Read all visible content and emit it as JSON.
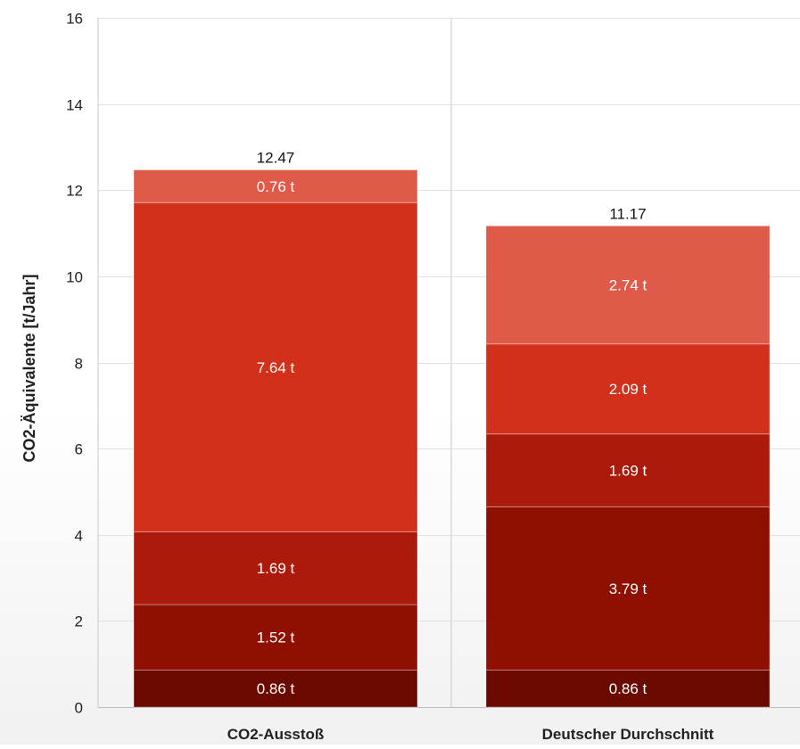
{
  "chart_data": {
    "type": "bar",
    "stacked": true,
    "title": "",
    "xlabel": "",
    "ylabel": "CO2-Äquivalente [t/Jahr]",
    "ylim": [
      0,
      16
    ],
    "yticks": [
      0,
      2,
      4,
      6,
      8,
      10,
      12,
      14,
      16
    ],
    "grid": true,
    "legend": "none",
    "categories": [
      "CO2-Ausstoß",
      "Deutscher Durchschnitt"
    ],
    "totals": [
      12.47,
      11.17
    ],
    "total_labels": [
      "12.47",
      "11.17"
    ],
    "series": [
      {
        "color": "#6b0a00",
        "values": [
          0.86,
          0.86
        ],
        "labels": [
          "0.86 t",
          "0.86 t"
        ]
      },
      {
        "color": "#8f0f00",
        "values": [
          1.52,
          3.79
        ],
        "labels": [
          "1.52 t",
          "3.79 t"
        ]
      },
      {
        "color": "#ac1a0b",
        "values": [
          1.69,
          1.69
        ],
        "labels": [
          "1.69 t",
          "1.69 t"
        ]
      },
      {
        "color": "#d3301c",
        "values": [
          7.64,
          2.09
        ],
        "labels": [
          "7.64 t",
          "2.09 t"
        ]
      },
      {
        "color": "#e05a4a",
        "values": [
          0.76,
          2.74
        ],
        "labels": [
          "0.76 t",
          "2.74 t"
        ]
      }
    ]
  }
}
